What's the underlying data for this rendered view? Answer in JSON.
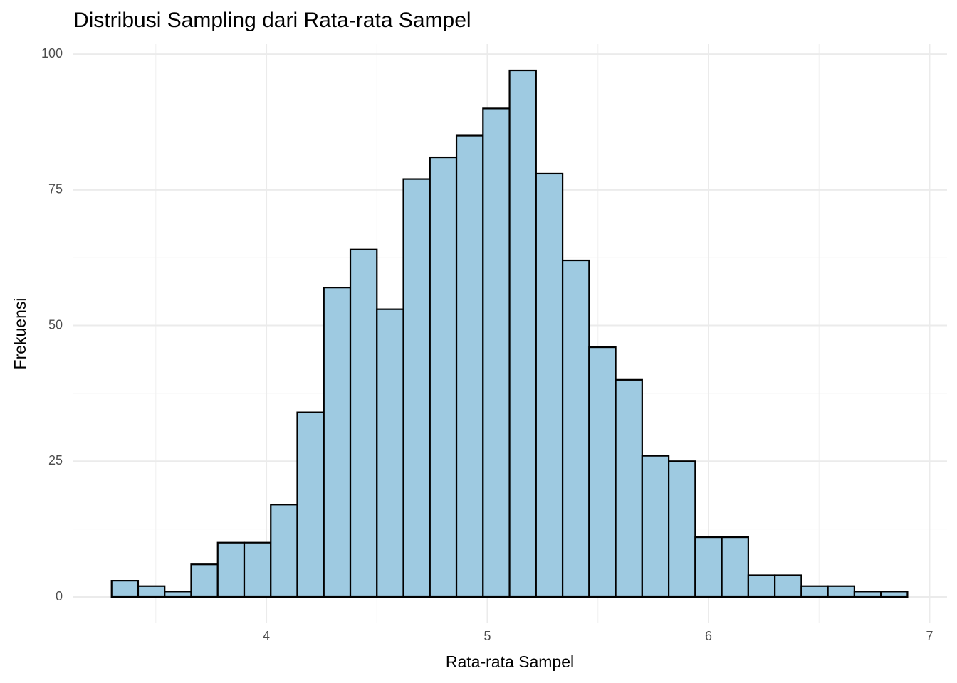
{
  "chart_data": {
    "type": "histogram",
    "title": "Distribusi Sampling dari Rata-rata Sampel",
    "x_label": "Rata-rata Sampel",
    "y_label": "Frekuensi",
    "bins": [
      3.3,
      3.42,
      3.54,
      3.66,
      3.78,
      3.9,
      4.02,
      4.14,
      4.26,
      4.38,
      4.5,
      4.62,
      4.74,
      4.86,
      4.98,
      5.1,
      5.22,
      5.34,
      5.46,
      5.58,
      5.7,
      5.82,
      5.94,
      6.06,
      6.18,
      6.3,
      6.42,
      6.54,
      6.66,
      6.78,
      6.9
    ],
    "values": [
      3,
      2,
      1,
      6,
      10,
      10,
      17,
      34,
      57,
      64,
      53,
      77,
      81,
      85,
      90,
      97,
      78,
      62,
      46,
      40,
      26,
      25,
      11,
      11,
      4,
      4,
      2,
      2,
      1,
      1
    ],
    "color": "#9ecae1",
    "edgecolor": "#000000",
    "xlim": [
      3.127,
      7.079
    ],
    "ylim": [
      -4.85,
      101.85
    ],
    "xticks": [
      4,
      5,
      6,
      7
    ],
    "yticks": [
      0,
      25,
      50,
      75,
      100
    ],
    "xminor": [
      3.5,
      4.5,
      5.5,
      6.5
    ],
    "yminor": [
      12.5,
      37.5,
      62.5,
      87.5
    ],
    "grid": true
  }
}
